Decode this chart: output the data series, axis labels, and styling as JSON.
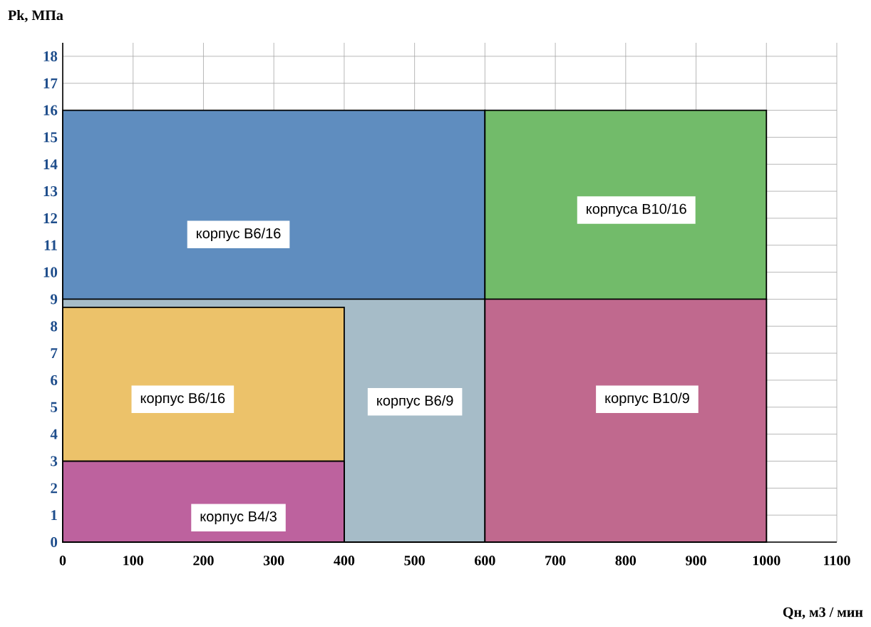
{
  "chart_data": {
    "type": "area",
    "xlabel": "Qн, м3 / мин",
    "ylabel": "Pk, МПа",
    "xlim": [
      0,
      1100
    ],
    "xticks": [
      0,
      100,
      200,
      300,
      400,
      500,
      600,
      700,
      800,
      900,
      1000,
      1100
    ],
    "ylim": [
      0,
      18.5
    ],
    "yticks": [
      0,
      1,
      2,
      3,
      4,
      5,
      6,
      7,
      8,
      9,
      10,
      11,
      12,
      13,
      14,
      15,
      16,
      17,
      18
    ],
    "grid": true,
    "series": [
      {
        "color": "#5f8dbf",
        "x": [
          0,
          600
        ],
        "values": [
          16,
          16
        ]
      },
      {
        "color": "#72bb6a",
        "x": [
          600,
          1000
        ],
        "values": [
          16,
          16
        ]
      },
      {
        "color": "#a6bcc8",
        "x": [
          0,
          600
        ],
        "values": [
          9,
          9
        ]
      },
      {
        "color": "#ecc26a",
        "x": [
          0,
          400
        ],
        "values": [
          8.7,
          8.7
        ]
      },
      {
        "color": "#bd629e",
        "x": [
          0,
          400
        ],
        "values": [
          3,
          3
        ]
      },
      {
        "color": "#c0698e",
        "x": [
          600,
          1000
        ],
        "values": [
          9,
          9
        ]
      }
    ],
    "annotations": [
      "корпус В6/16",
      "корпуса В10/16",
      "корпус В6/16",
      "корпус В6/9",
      "корпус В10/9",
      "корпус В4/3"
    ]
  }
}
